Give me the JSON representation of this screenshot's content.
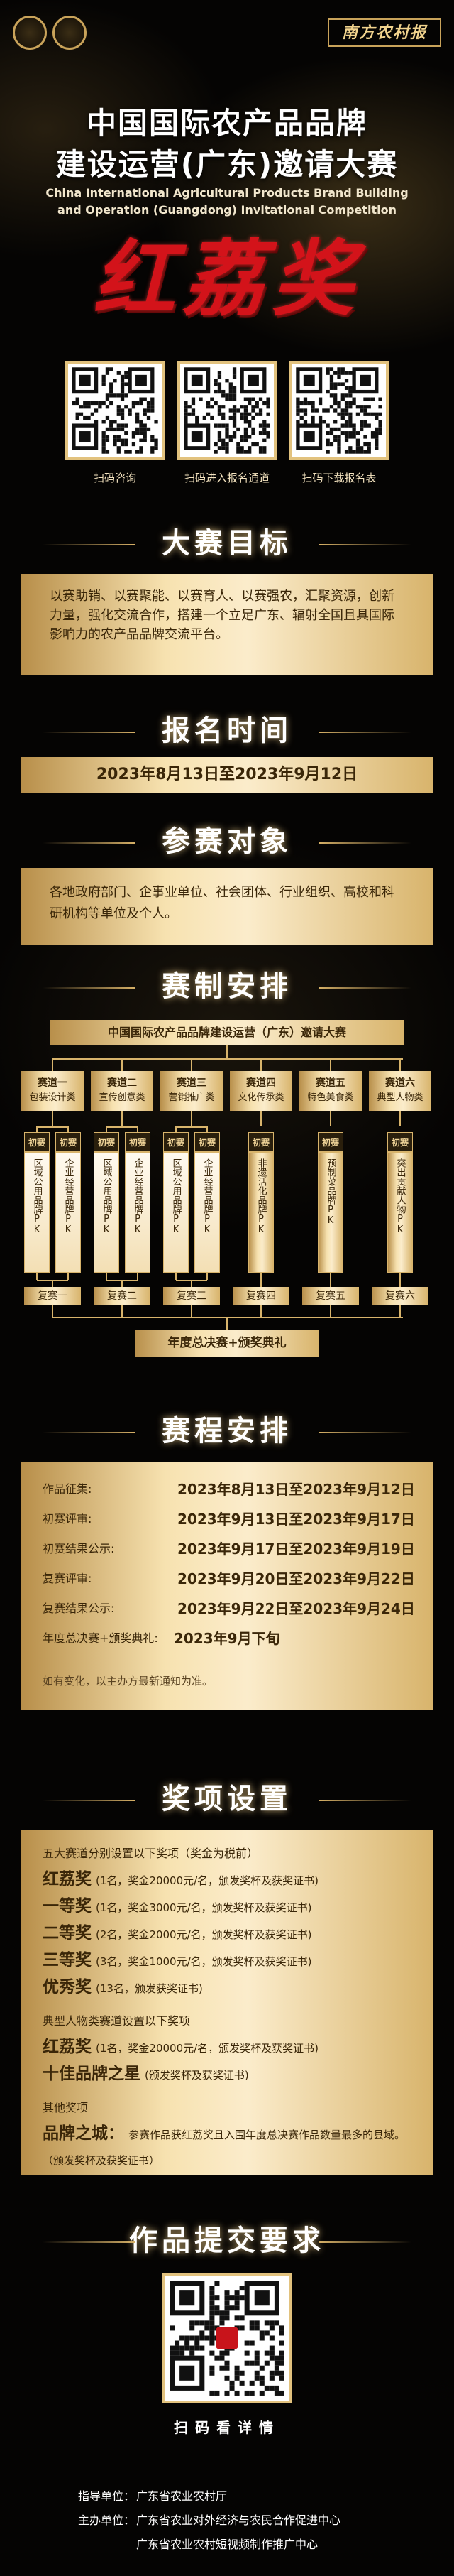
{
  "header": {
    "logo_text": "南方农村报"
  },
  "title": {
    "lines": [
      "中国国际农产品品牌",
      "建设运营(广东)邀请大赛"
    ],
    "english": [
      "China International Agricultural Products Brand Building",
      "and Operation (Guangdong) Invitational Competition"
    ],
    "award": "红荔奖"
  },
  "qr_codes": [
    {
      "label": "扫码咨询"
    },
    {
      "label": "扫码进入报名通道"
    },
    {
      "label": "扫码下载报名表"
    }
  ],
  "goal": {
    "heading": "大赛目标",
    "text": "以赛助销、以赛聚能、以赛育人、以赛强农，汇聚资源，创新力量，强化交流合作，搭建一个立足广东、辐射全国且具国际影响力的农产品品牌交流平台。"
  },
  "registration": {
    "heading": "报名时间",
    "text": "2023年8月13日至2023年9月12日"
  },
  "participants": {
    "heading": "参赛对象",
    "text": "各地政府部门、企事业单位、社会团体、行业组织、高校和科研机构等单位及个人。"
  },
  "format": {
    "heading": "赛制安排",
    "top": "中国国际农产品品牌建设运营（广东）邀请大赛",
    "tracks": [
      {
        "name": "赛道一",
        "type": "包装设计类",
        "prelim": "初赛",
        "groups": [
          "区域公用品牌PK",
          "企业经营品牌PK"
        ],
        "semifinal": "复赛一"
      },
      {
        "name": "赛道二",
        "type": "宣传创意类",
        "prelim": "初赛",
        "groups": [
          "区域公用品牌PK",
          "企业经营品牌PK"
        ],
        "semifinal": "复赛二"
      },
      {
        "name": "赛道三",
        "type": "营销推广类",
        "prelim": "初赛",
        "groups": [
          "区域公用品牌PK",
          "企业经营品牌PK"
        ],
        "semifinal": "复赛三"
      },
      {
        "name": "赛道四",
        "type": "文化传承类",
        "prelim": "初赛",
        "groups": [
          "非遗活化品牌PK"
        ],
        "semifinal": "复赛四"
      },
      {
        "name": "赛道五",
        "type": "特色美食类",
        "prelim": "初赛",
        "groups": [
          "预制菜品牌PK"
        ],
        "semifinal": "复赛五"
      },
      {
        "name": "赛道六",
        "type": "典型人物类",
        "prelim": "初赛",
        "groups": [
          "突出贡献人物PK"
        ],
        "semifinal": "复赛六"
      }
    ],
    "final": "年度总决赛+颁奖典礼"
  },
  "schedule": {
    "heading": "赛程安排",
    "rows": [
      {
        "label": "作品征集:",
        "date": "2023年8月13日至2023年9月12日"
      },
      {
        "label": "初赛评审:",
        "date": "2023年9月13日至2023年9月17日"
      },
      {
        "label": "初赛结果公示:",
        "date": "2023年9月17日至2023年9月19日"
      },
      {
        "label": "复赛评审:",
        "date": "2023年9月20日至2023年9月22日"
      },
      {
        "label": "复赛结果公示:",
        "date": "2023年9月22日至2023年9月24日"
      },
      {
        "label": "年度总决赛+颁奖典礼:",
        "date": "2023年9月下旬"
      }
    ],
    "note": "如有变化，以主办方最新通知为准。"
  },
  "awards": {
    "heading": "奖项设置",
    "sections": [
      {
        "title": "五大赛道分别设置以下奖项（奖金为税前）",
        "items": [
          {
            "name": "红荔奖",
            "detail": "(1名，奖金20000元/名，颁发奖杯及获奖证书)"
          },
          {
            "name": "一等奖",
            "detail": "(1名，奖金3000元/名，颁发奖杯及获奖证书)"
          },
          {
            "name": "二等奖",
            "detail": "(2名，奖金2000元/名，颁发奖杯及获奖证书)"
          },
          {
            "name": "三等奖",
            "detail": "(3名，奖金1000元/名，颁发奖杯及获奖证书)"
          },
          {
            "name": "优秀奖",
            "detail": "(13名，颁发获奖证书)"
          }
        ]
      },
      {
        "title": "典型人物类赛道设置以下奖项",
        "items": [
          {
            "name": "红荔奖",
            "detail": "(1名，奖金20000元/名，颁发奖杯及获奖证书)"
          },
          {
            "name": "十佳品牌之星",
            "detail": "(颁发奖杯及获奖证书)"
          }
        ]
      },
      {
        "title": "其他奖项",
        "items": [
          {
            "name": "品牌之城：",
            "detail": "参赛作品获红荔奖且入围年度总决赛作品数量最多的县域。（颁发奖杯及获奖证书）"
          }
        ]
      }
    ]
  },
  "submission": {
    "heading": "作品提交要求",
    "qr_label": "扫码看详情"
  },
  "footer": {
    "guide": {
      "label": "指导单位：",
      "value": "广东省农业农村厅"
    },
    "host": {
      "label": "主办单位：",
      "values": [
        "广东省农业对外经济与农民合作促进中心",
        "广东省农业农村短视频制作推广中心"
      ]
    }
  }
}
